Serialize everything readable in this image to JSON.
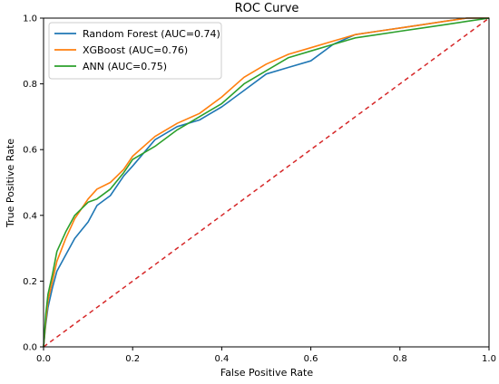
{
  "chart_data": {
    "type": "line",
    "title": "ROC Curve",
    "xlabel": "False Positive Rate",
    "ylabel": "True Positive Rate",
    "xlim": [
      0,
      1
    ],
    "ylim": [
      0,
      1
    ],
    "xticks": [
      "0.0",
      "0.2",
      "0.4",
      "0.6",
      "0.8",
      "1.0"
    ],
    "yticks": [
      "0.0",
      "0.2",
      "0.4",
      "0.6",
      "0.8",
      "1.0"
    ],
    "grid": false,
    "legend_position": "top-left",
    "series": [
      {
        "name": "Random Forest (AUC=0.74)",
        "color": "#1f77b4",
        "x": [
          0,
          0.005,
          0.01,
          0.02,
          0.03,
          0.05,
          0.07,
          0.1,
          0.12,
          0.15,
          0.18,
          0.2,
          0.25,
          0.3,
          0.35,
          0.4,
          0.45,
          0.5,
          0.55,
          0.6,
          0.65,
          0.7,
          0.75,
          0.8,
          0.85,
          0.9,
          0.95,
          1.0
        ],
        "y": [
          0,
          0.07,
          0.12,
          0.18,
          0.23,
          0.28,
          0.33,
          0.38,
          0.43,
          0.46,
          0.52,
          0.55,
          0.63,
          0.67,
          0.69,
          0.73,
          0.78,
          0.83,
          0.85,
          0.87,
          0.92,
          0.95,
          0.96,
          0.97,
          0.98,
          0.99,
          1.0,
          1.0
        ]
      },
      {
        "name": "XGBoost (AUC=0.76)",
        "color": "#ff7f0e",
        "x": [
          0,
          0.005,
          0.01,
          0.02,
          0.03,
          0.05,
          0.07,
          0.1,
          0.12,
          0.15,
          0.18,
          0.2,
          0.25,
          0.3,
          0.35,
          0.4,
          0.45,
          0.5,
          0.55,
          0.6,
          0.65,
          0.7,
          0.75,
          0.8,
          0.85,
          0.9,
          0.95,
          1.0
        ],
        "y": [
          0,
          0.08,
          0.14,
          0.2,
          0.26,
          0.33,
          0.39,
          0.45,
          0.48,
          0.5,
          0.54,
          0.58,
          0.64,
          0.68,
          0.71,
          0.76,
          0.82,
          0.86,
          0.89,
          0.91,
          0.93,
          0.95,
          0.96,
          0.97,
          0.98,
          0.99,
          1.0,
          1.0
        ]
      },
      {
        "name": "ANN (AUC=0.75)",
        "color": "#2ca02c",
        "x": [
          0,
          0.005,
          0.01,
          0.02,
          0.03,
          0.05,
          0.07,
          0.1,
          0.12,
          0.15,
          0.18,
          0.2,
          0.25,
          0.3,
          0.35,
          0.4,
          0.45,
          0.5,
          0.55,
          0.6,
          0.65,
          0.7,
          0.75,
          0.8,
          0.85,
          0.9,
          0.95,
          1.0
        ],
        "y": [
          0,
          0.1,
          0.16,
          0.22,
          0.29,
          0.35,
          0.4,
          0.44,
          0.45,
          0.48,
          0.53,
          0.57,
          0.61,
          0.66,
          0.7,
          0.74,
          0.8,
          0.84,
          0.88,
          0.9,
          0.92,
          0.94,
          0.95,
          0.96,
          0.97,
          0.98,
          0.99,
          1.0
        ]
      }
    ],
    "reference_line": {
      "x": [
        0,
        1
      ],
      "y": [
        0,
        1
      ],
      "color": "#d62728",
      "style": "dashed"
    }
  }
}
